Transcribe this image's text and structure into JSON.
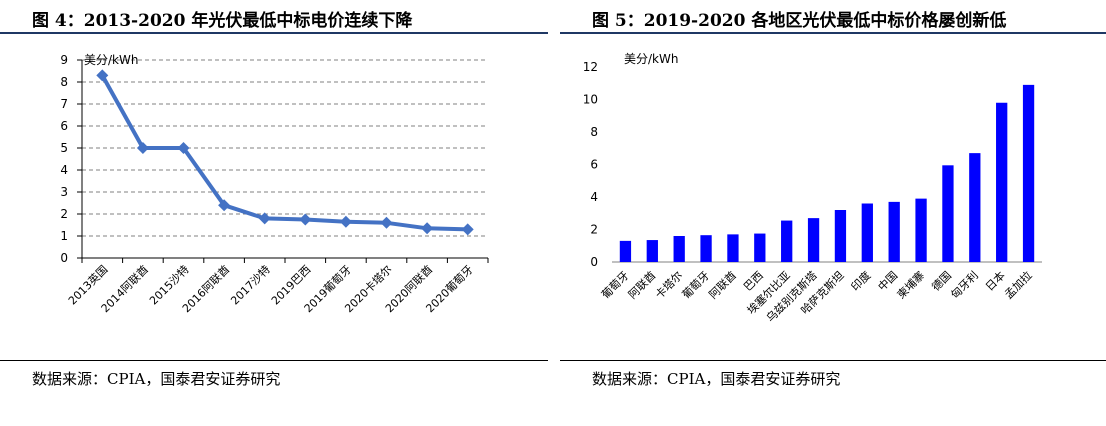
{
  "left": {
    "title": "图 4：2013-2020 年光伏最低中标电价连续下降",
    "source": "数据来源：CPIA，国泰君安证券研究"
  },
  "right": {
    "title": "图 5：2019-2020 各地区光伏最低中标价格屡创新低",
    "source": "数据来源：CPIA，国泰君安证券研究"
  },
  "chart_data": [
    {
      "type": "line",
      "title": "",
      "xlabel": "",
      "ylabel": "美分/kWh",
      "ylim": [
        0,
        9
      ],
      "yticks": [
        0,
        1,
        2,
        3,
        4,
        5,
        6,
        7,
        8,
        9
      ],
      "grid": true,
      "color": "#4472c4",
      "categories": [
        "2013英国",
        "2014阿联酋",
        "2015沙特",
        "2016阿联酋",
        "2017沙特",
        "2019巴西",
        "2019葡萄牙",
        "2020卡塔尔",
        "2020阿联酋",
        "2020葡萄牙"
      ],
      "values": [
        8.3,
        5.0,
        5.0,
        2.4,
        1.8,
        1.75,
        1.65,
        1.6,
        1.35,
        1.3
      ]
    },
    {
      "type": "bar",
      "title": "",
      "xlabel": "",
      "ylabel": "美分/kWh",
      "ylim": [
        0,
        12
      ],
      "yticks": [
        0,
        2,
        4,
        6,
        8,
        10,
        12
      ],
      "grid": false,
      "color": "#0000ff",
      "categories": [
        "葡萄牙",
        "阿联酋",
        "卡塔尔",
        "葡萄牙",
        "阿联酋",
        "巴西",
        "埃塞尔比亚",
        "乌兹别克斯塔",
        "哈萨克斯坦",
        "印度",
        "中国",
        "柬埔寨",
        "德国",
        "匈牙利",
        "日本",
        "孟加拉"
      ],
      "values": [
        1.3,
        1.35,
        1.6,
        1.65,
        1.7,
        1.75,
        2.55,
        2.7,
        3.2,
        3.6,
        3.7,
        3.9,
        5.95,
        6.7,
        9.8,
        10.9
      ]
    }
  ]
}
